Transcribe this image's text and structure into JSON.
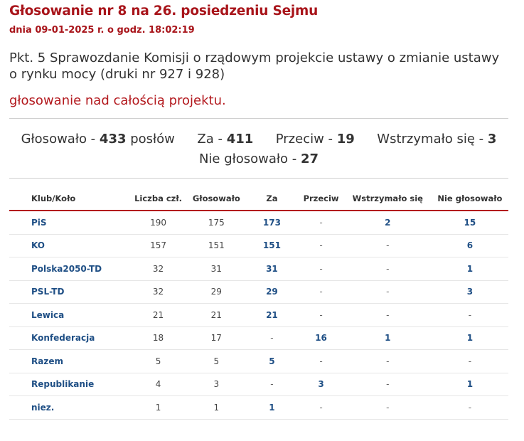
{
  "header": {
    "title": "Głosowanie nr 8 na 26. posiedzeniu Sejmu",
    "subtitle": "dnia 09-01-2025 r. o godz. 18:02:19"
  },
  "description": "Pkt. 5 Sprawozdanie Komisji o rządowym projekcie ustawy o zmianie ustawy o rynku mocy (druki nr 927 i 928)",
  "stage": "głosowanie nad całością projektu.",
  "summary": {
    "voted_label": "Głosowało -",
    "voted_value": "433",
    "voted_unit": "posłów",
    "for_label": "Za -",
    "for_value": "411",
    "against_label": "Przeciw -",
    "against_value": "19",
    "abstain_label": "Wstrzymało się -",
    "abstain_value": "3",
    "not_voted_label": "Nie głosowało -",
    "not_voted_value": "27"
  },
  "table": {
    "headers": [
      "Klub/Koło",
      "Liczba czł.",
      "Głosowało",
      "Za",
      "Przeciw",
      "Wstrzymało się",
      "Nie głosowało"
    ],
    "rows": [
      [
        "PiS",
        "190",
        "175",
        "173",
        "-",
        "2",
        "15"
      ],
      [
        "KO",
        "157",
        "151",
        "151",
        "-",
        "-",
        "6"
      ],
      [
        "Polska2050-TD",
        "32",
        "31",
        "31",
        "-",
        "-",
        "1"
      ],
      [
        "PSL-TD",
        "32",
        "29",
        "29",
        "-",
        "-",
        "3"
      ],
      [
        "Lewica",
        "21",
        "21",
        "21",
        "-",
        "-",
        "-"
      ],
      [
        "Konfederacja",
        "18",
        "17",
        "-",
        "16",
        "1",
        "1"
      ],
      [
        "Razem",
        "5",
        "5",
        "5",
        "-",
        "-",
        "-"
      ],
      [
        "Republikanie",
        "4",
        "3",
        "-",
        "3",
        "-",
        "1"
      ],
      [
        "niez.",
        "1",
        "1",
        "1",
        "-",
        "-",
        "-"
      ]
    ]
  },
  "colors": {
    "title_red": "#a8141a",
    "link_blue": "#1f4f85",
    "divider_red": "#b3181d"
  }
}
